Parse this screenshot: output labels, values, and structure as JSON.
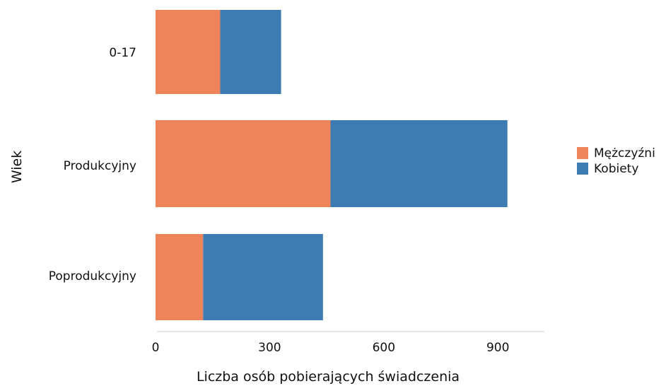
{
  "chart_data": {
    "type": "bar",
    "orientation": "horizontal",
    "stacked": true,
    "categories": [
      "0-17",
      "Produkcyjny",
      "Poprodukcyjny"
    ],
    "series": [
      {
        "name": "Mężczyźni",
        "values": [
          170,
          460,
          125
        ],
        "color": "#ee8459"
      },
      {
        "name": "Kobiety",
        "values": [
          160,
          465,
          315
        ],
        "color": "#3d7bb3"
      }
    ],
    "xlabel": "Liczba osób pobierających świadczenia",
    "ylabel": "Wiek",
    "xlim": [
      0,
      1050
    ],
    "xticks": [
      0,
      300,
      600,
      900
    ],
    "grid": false,
    "legend_position": "right"
  }
}
